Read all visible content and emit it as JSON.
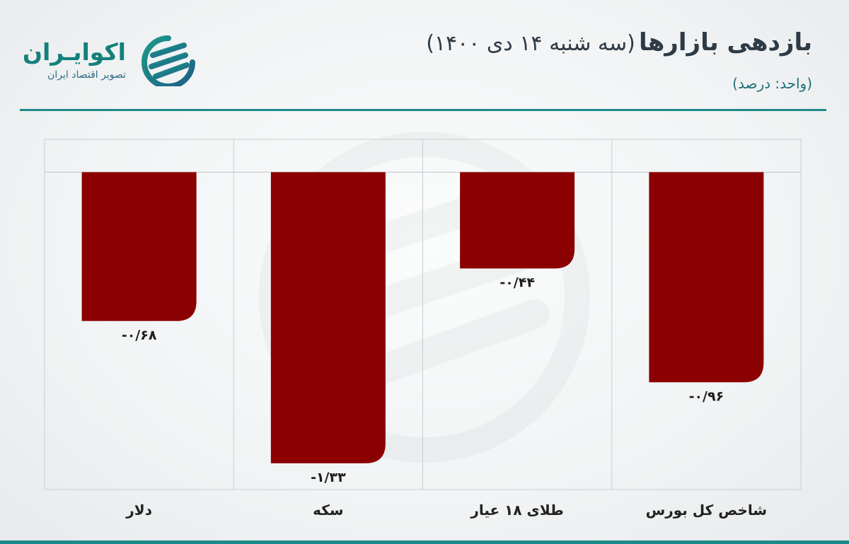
{
  "brand": {
    "name": "اکوایـران",
    "tagline": "تصویر اقتصاد ایران",
    "color": "#14807b"
  },
  "header": {
    "title_main": "بازدهی بازارها",
    "title_sub": "(سه شنبه ۱۴ دی ۱۴۰۰)",
    "unit": "(واحد: درصد)"
  },
  "colors": {
    "bar": "#8b0000",
    "accent": "#1d8a8a",
    "grid": "#c9ced2"
  },
  "chart_data": {
    "type": "bar",
    "orientation": "vertical",
    "categories": [
      "دلار",
      "سکه",
      "طلای ۱۸ عیار",
      "شاخص کل بورس"
    ],
    "values": [
      -0.68,
      -1.33,
      -0.44,
      -0.96
    ],
    "data_labels": [
      "-۰/۶۸",
      "-۱/۳۳",
      "-۰/۴۴",
      "-۰/۹۶"
    ],
    "ylim": [
      -1.45,
      0.15
    ],
    "grid": true,
    "legend": "none"
  }
}
